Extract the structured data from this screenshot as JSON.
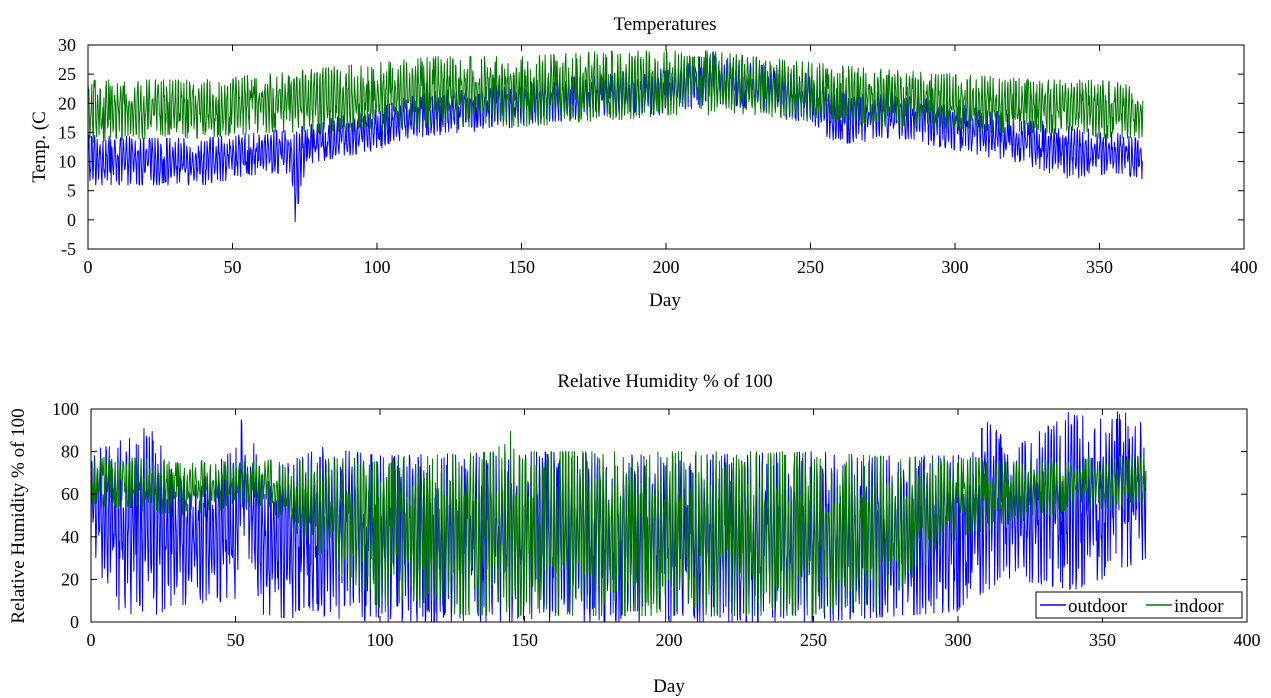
{
  "colors": {
    "outdoor": "#0000ff",
    "indoor": "#007700",
    "axis": "#000000",
    "background": "#ffffff"
  },
  "chart_data": [
    {
      "type": "line",
      "title": "Temperatures",
      "xlabel": "Day",
      "ylabel": "Temp. (C",
      "xlim": [
        0,
        400
      ],
      "ylim": [
        -5,
        30
      ],
      "xticks": [
        0,
        50,
        100,
        150,
        200,
        250,
        300,
        350,
        400
      ],
      "yticks": [
        -5,
        0,
        5,
        10,
        15,
        20,
        25,
        30
      ],
      "grid": false,
      "x_range_of_data": [
        0,
        365
      ],
      "series": [
        {
          "key": "outdoor",
          "color": "#0000ff",
          "envelope": {
            "day": [
              0,
              20,
              40,
              60,
              70,
              72,
              74,
              80,
              100,
              110,
              130,
              150,
              180,
              200,
              215,
              230,
              250,
              260,
              280,
              300,
              320,
              340,
              355,
              365
            ],
            "low": [
              6,
              6,
              6,
              8,
              8,
              -2,
              7,
              10,
              12,
              14,
              15,
              16,
              18,
              18,
              20,
              19,
              16,
              13,
              14,
              12,
              10,
              7,
              8,
              7
            ],
            "high": [
              15,
              14,
              14,
              15,
              16,
              15,
              16,
              17,
              19,
              21,
              23,
              24,
              25,
              26,
              29,
              27,
              25,
              22,
              22,
              20,
              18,
              16,
              15,
              14
            ]
          }
        },
        {
          "key": "indoor",
          "color": "#007700",
          "envelope": {
            "day": [
              0,
              20,
              40,
              60,
              80,
              100,
              120,
              150,
              180,
              200,
              215,
              230,
              250,
              270,
              300,
              330,
              350,
              365
            ],
            "low": [
              13,
              14,
              14,
              15,
              15,
              15,
              16,
              16,
              17,
              18,
              18,
              18,
              17,
              16,
              15,
              15,
              14,
              14
            ],
            "high": [
              24,
              24,
              24,
              25,
              26,
              27,
              28,
              28,
              29,
              29,
              29,
              28,
              27,
              26,
              25,
              24,
              24,
              23
            ]
          }
        }
      ]
    },
    {
      "type": "line",
      "title": "Relative Humidity % of 100",
      "xlabel": "Day",
      "ylabel": "Relative Humidity % of 100",
      "xlim": [
        0,
        400
      ],
      "ylim": [
        0,
        100
      ],
      "xticks": [
        0,
        50,
        100,
        150,
        200,
        250,
        300,
        350,
        400
      ],
      "yticks": [
        0,
        20,
        40,
        60,
        80,
        100
      ],
      "grid": false,
      "legend": {
        "placement": "bottom-right",
        "entries": [
          "outdoor",
          "indoor"
        ]
      },
      "x_range_of_data": [
        0,
        365
      ],
      "series": [
        {
          "name": "outdoor",
          "color": "#0000ff",
          "envelope": {
            "day": [
              0,
              10,
              20,
              30,
              50,
              52,
              60,
              80,
              100,
              150,
              200,
              250,
              270,
              300,
              310,
              320,
              340,
              350,
              357,
              365
            ],
            "low": [
              30,
              5,
              2,
              8,
              10,
              40,
              2,
              2,
              0,
              0,
              0,
              0,
              2,
              5,
              15,
              20,
              15,
              20,
              25,
              30
            ],
            "high": [
              80,
              85,
              92,
              70,
              80,
              100,
              70,
              82,
              78,
              80,
              78,
              80,
              78,
              78,
              94,
              82,
              100,
              95,
              100,
              92
            ]
          }
        },
        {
          "name": "indoor",
          "color": "#007700",
          "envelope": {
            "day": [
              0,
              30,
              60,
              100,
              140,
              145,
              150,
              200,
              250,
              270,
              300,
              330,
              365
            ],
            "low": [
              55,
              50,
              55,
              5,
              3,
              3,
              3,
              3,
              3,
              3,
              40,
              50,
              55
            ],
            "high": [
              78,
              76,
              76,
              77,
              80,
              90,
              80,
              80,
              80,
              78,
              77,
              77,
              78
            ]
          }
        }
      ]
    }
  ]
}
